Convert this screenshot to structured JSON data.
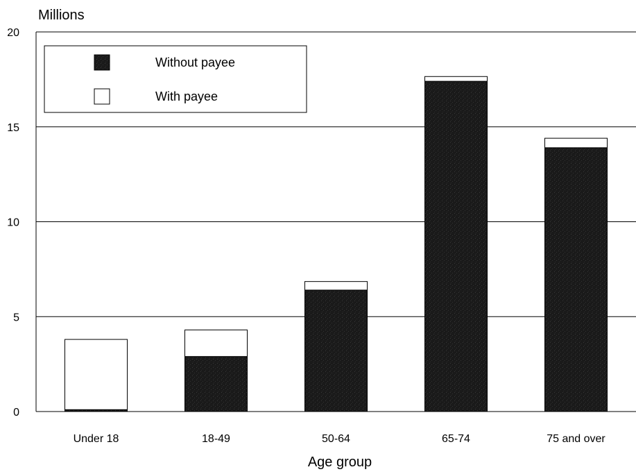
{
  "chart_data": {
    "type": "bar",
    "stacked": true,
    "ylabel": "Millions",
    "xlabel": "Age group",
    "ylim": [
      0,
      20
    ],
    "yticks": [
      0,
      5,
      10,
      15,
      20
    ],
    "grid": true,
    "legend_position": "top-left",
    "categories": [
      "Under 18",
      "18-49",
      "50-64",
      "65-74",
      "75 and over"
    ],
    "series": [
      {
        "name": "Without payee",
        "values": [
          0.1,
          2.9,
          6.4,
          17.4,
          13.9
        ],
        "color": "#1a1a1a"
      },
      {
        "name": "With payee",
        "values": [
          3.7,
          1.4,
          0.45,
          0.25,
          0.5
        ],
        "color": "#ffffff"
      }
    ]
  }
}
